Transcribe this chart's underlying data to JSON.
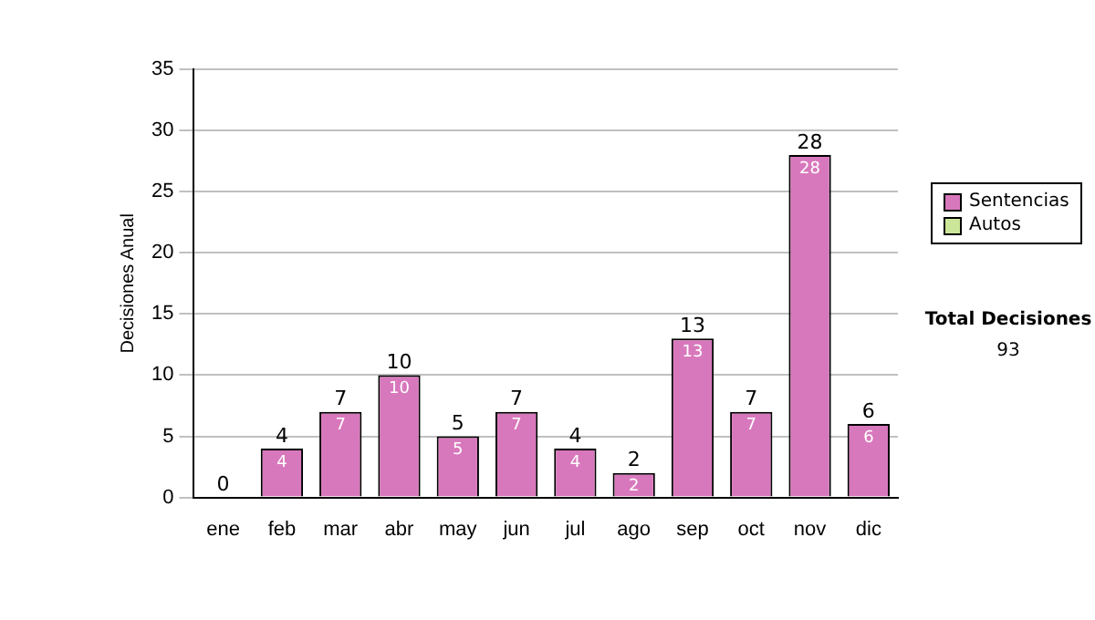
{
  "chart_data": {
    "type": "bar",
    "ylabel": "Decisiones Anual",
    "categories": [
      "ene",
      "feb",
      "mar",
      "abr",
      "may",
      "jun",
      "jul",
      "ago",
      "sep",
      "oct",
      "nov",
      "dic"
    ],
    "stacked": true,
    "series": [
      {
        "name": "Sentencias",
        "color": "#d878bc",
        "values": [
          0,
          4,
          7,
          10,
          5,
          7,
          4,
          2,
          13,
          7,
          28,
          6
        ],
        "value_labels": [
          null,
          "4",
          "7",
          "10",
          "5",
          "7",
          "4",
          "2",
          "13",
          "7",
          "28",
          "6"
        ]
      },
      {
        "name": "Autos",
        "color": "#cce699",
        "values": [
          0,
          0,
          0,
          0,
          0,
          0,
          0,
          0,
          0,
          0,
          0,
          0
        ]
      }
    ],
    "totals": [
      "0",
      "4",
      "7",
      "10",
      "5",
      "7",
      "4",
      "2",
      "13",
      "7",
      "28",
      "6"
    ],
    "ylim": [
      0,
      35
    ],
    "yticks": [
      0,
      5,
      10,
      15,
      20,
      25,
      30,
      35
    ],
    "grid": "y",
    "legend": "right",
    "annotations": [
      "Total Decisiones",
      "93"
    ]
  }
}
